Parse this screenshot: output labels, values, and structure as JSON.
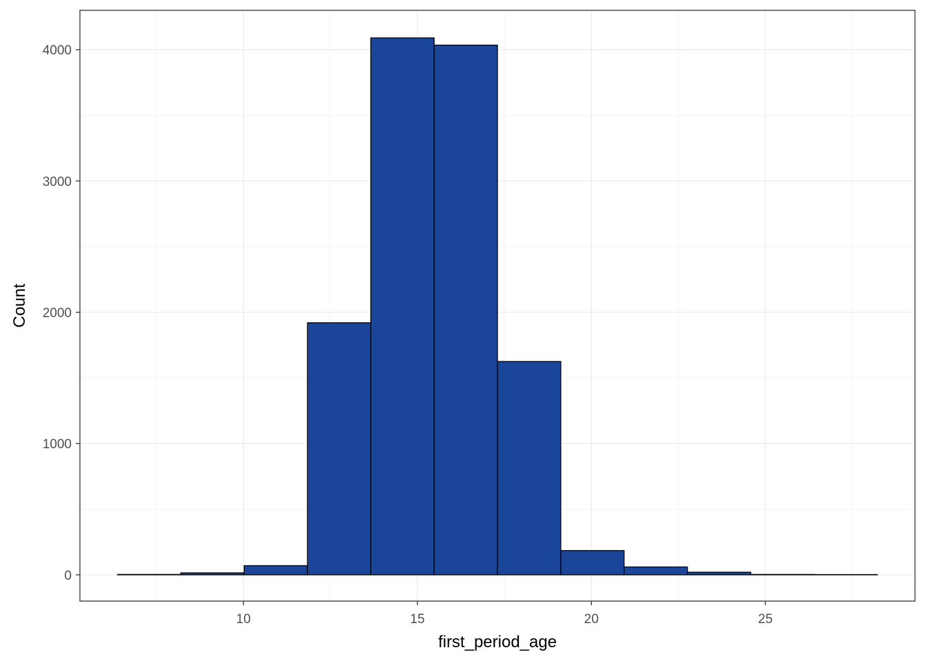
{
  "chart_data": {
    "type": "bar",
    "subtype": "histogram",
    "xlabel": "first_period_age",
    "ylabel": "Count",
    "xlim": [
      5.3,
      29.3
    ],
    "ylim": [
      -200,
      4300
    ],
    "x_ticks": [
      10,
      15,
      20,
      25
    ],
    "y_ticks": [
      0,
      1000,
      2000,
      3000,
      4000
    ],
    "bins": [
      {
        "x0": 6.38,
        "x1": 8.2,
        "count": 3
      },
      {
        "x0": 8.2,
        "x1": 10.02,
        "count": 15
      },
      {
        "x0": 10.02,
        "x1": 11.84,
        "count": 70
      },
      {
        "x0": 11.84,
        "x1": 13.66,
        "count": 1920
      },
      {
        "x0": 13.66,
        "x1": 15.48,
        "count": 4090
      },
      {
        "x0": 15.48,
        "x1": 17.3,
        "count": 4035
      },
      {
        "x0": 17.3,
        "x1": 19.12,
        "count": 1625
      },
      {
        "x0": 19.12,
        "x1": 20.94,
        "count": 185
      },
      {
        "x0": 20.94,
        "x1": 22.76,
        "count": 60
      },
      {
        "x0": 22.76,
        "x1": 24.58,
        "count": 20
      },
      {
        "x0": 24.58,
        "x1": 26.4,
        "count": 3
      },
      {
        "x0": 26.4,
        "x1": 28.22,
        "count": 2
      }
    ],
    "grid": true,
    "legend": "none",
    "colors": {
      "bar_fill": "#1a4599",
      "bar_stroke": "#000000",
      "panel_border": "#333333",
      "grid_major": "#ebebeb",
      "grid_minor": "#f4f4f4",
      "tick_text": "#4d4d4d"
    }
  }
}
